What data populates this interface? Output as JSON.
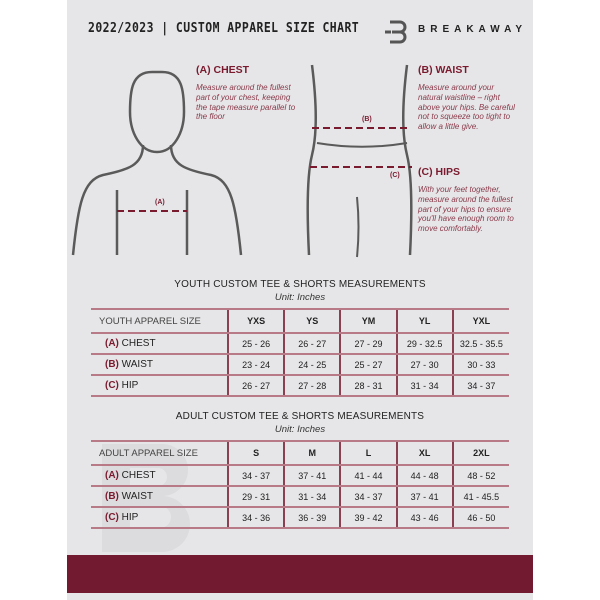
{
  "header": {
    "title": "2022/2023  |  CUSTOM APPAREL SIZE CHART",
    "brand": "BREAKAWAY",
    "logo_letter": "B"
  },
  "colors": {
    "accent": "#711a30",
    "panel": "#e6e6e8"
  },
  "guide": {
    "chest": {
      "title": "(A) CHEST",
      "text": "Measure around the fullest part of your chest, keeping the tape measure parallel to the floor",
      "marker": "(A)"
    },
    "waist": {
      "title": "(B) WAIST",
      "text": "Measure around your natural waistline – right above your hips. Be careful not to squeeze too tight to allow a little give.",
      "marker": "(B)"
    },
    "hips": {
      "title": "(C) HIPS",
      "text": "With your feet together, measure around the fullest part of your hips to ensure you'll have enough room to move comfortably.",
      "marker": "(C)"
    }
  },
  "youth": {
    "title": "YOUTH CUSTOM TEE & SHORTS MEASUREMENTS",
    "unit": "Unit: Inches",
    "header": "YOUTH APPAREL SIZE",
    "sizes": [
      "YXS",
      "YS",
      "YM",
      "YL",
      "YXL"
    ],
    "rows": [
      {
        "letter": "(A)",
        "label": "CHEST",
        "values": [
          "25 - 26",
          "26 - 27",
          "27 - 29",
          "29 - 32.5",
          "32.5 - 35.5"
        ]
      },
      {
        "letter": "(B)",
        "label": "WAIST",
        "values": [
          "23 - 24",
          "24 - 25",
          "25 - 27",
          "27 - 30",
          "30 - 33"
        ]
      },
      {
        "letter": "(C)",
        "label": "HIP",
        "values": [
          "26 - 27",
          "27 - 28",
          "28 - 31",
          "31 - 34",
          "34 - 37"
        ]
      }
    ]
  },
  "adult": {
    "title": "ADULT CUSTOM TEE & SHORTS MEASUREMENTS",
    "unit": "Unit: Inches",
    "header": "ADULT APPAREL SIZE",
    "sizes": [
      "S",
      "M",
      "L",
      "XL",
      "2XL"
    ],
    "rows": [
      {
        "letter": "(A)",
        "label": "CHEST",
        "values": [
          "34 - 37",
          "37 - 41",
          "41 - 44",
          "44 - 48",
          "48 - 52"
        ]
      },
      {
        "letter": "(B)",
        "label": "WAIST",
        "values": [
          "29 - 31",
          "31 - 34",
          "34 - 37",
          "37 - 41",
          "41 - 45.5"
        ]
      },
      {
        "letter": "(C)",
        "label": "HIP",
        "values": [
          "34 - 36",
          "36 - 39",
          "39 - 42",
          "43 - 46",
          "46 - 50"
        ]
      }
    ]
  }
}
